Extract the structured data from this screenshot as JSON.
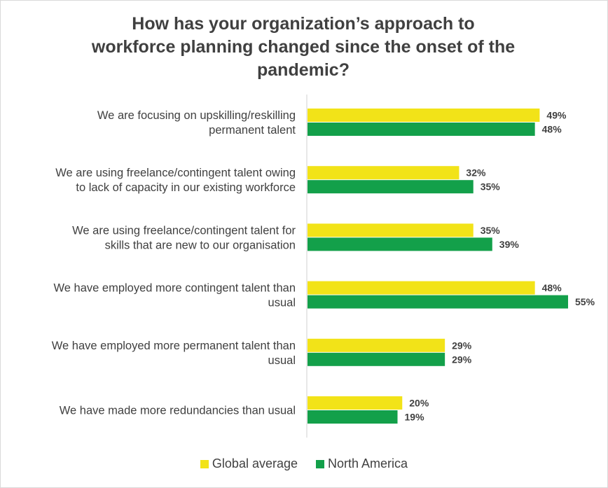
{
  "colors": {
    "global": "#f2e318",
    "north_america": "#13a04a"
  },
  "chart_data": {
    "type": "bar",
    "orientation": "horizontal",
    "title": "How has your organization’s approach to\nworkforce planning changed since the onset of the\npandemic?",
    "categories": [
      [
        "We are focusing on upskilling/reskilling",
        "permanent talent"
      ],
      [
        "We are using freelance/contingent talent owing",
        "to lack of capacity in our existing workforce"
      ],
      [
        "We are using freelance/contingent talent for",
        "skills that are new to our organisation"
      ],
      [
        "We have employed more contingent talent than",
        "usual"
      ],
      [
        "We have employed more permanent talent than",
        "usual"
      ],
      [
        "We have made more redundancies than usual"
      ]
    ],
    "series": [
      {
        "name": "Global average",
        "values": [
          49,
          32,
          35,
          48,
          29,
          20
        ],
        "labels": [
          "49%",
          "32%",
          "35%",
          "48%",
          "29%",
          "20%"
        ]
      },
      {
        "name": "North America",
        "values": [
          48,
          35,
          39,
          55,
          29,
          19
        ],
        "labels": [
          "48%",
          "35%",
          "39%",
          "55%",
          "29%",
          "19%"
        ]
      }
    ],
    "xlim": [
      0,
      55
    ],
    "grid": false,
    "legend_position": "bottom"
  }
}
